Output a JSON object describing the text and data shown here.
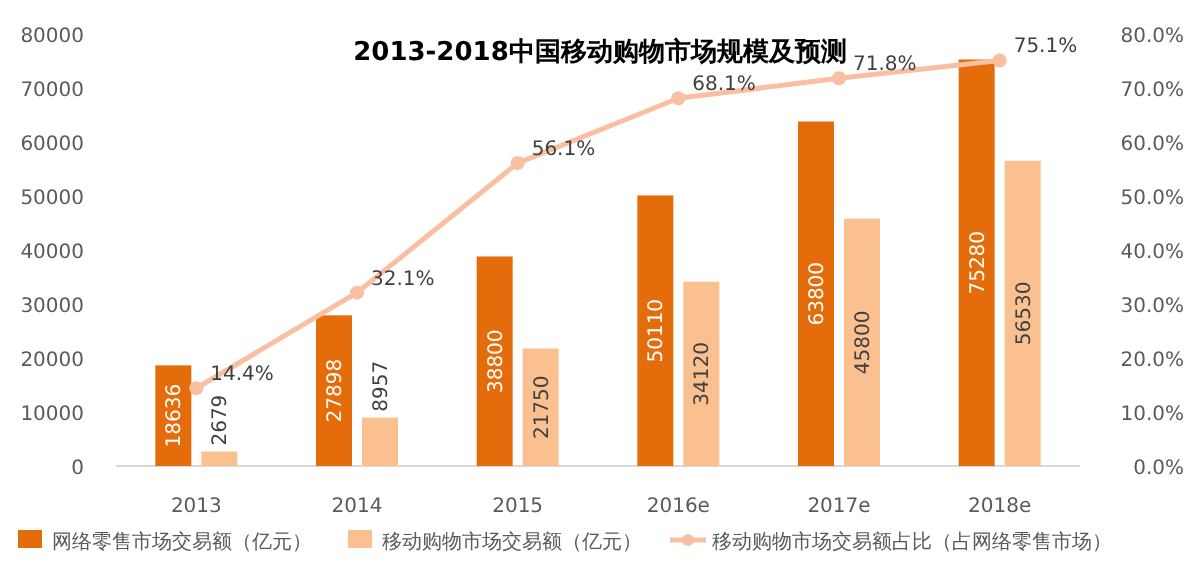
{
  "chart_data": {
    "type": "bar",
    "title": "2013-2018中国移动购物市场规模及预测",
    "categories": [
      "2013",
      "2014",
      "2015",
      "2016e",
      "2017e",
      "2018e"
    ],
    "series": [
      {
        "name": "网络零售市场交易额（亿元）",
        "color": "#e46c0a",
        "values": [
          18636,
          27898,
          38800,
          50110,
          63800,
          75280
        ]
      },
      {
        "name": "移动购物市场交易额（亿元）",
        "color": "#fac090",
        "values": [
          2679,
          8957,
          21750,
          34120,
          45800,
          56530
        ]
      },
      {
        "name": "移动购物市场交易额占比（占网络零售市场）",
        "type": "line",
        "axis": "y2",
        "marker": "circle",
        "color": "#f9bfa0",
        "values": [
          14.4,
          32.1,
          56.1,
          68.1,
          71.8,
          75.1
        ],
        "value_labels": [
          "14.4%",
          "32.1%",
          "56.1%",
          "68.1%",
          "71.8%",
          "75.1%"
        ]
      }
    ],
    "ylim": [
      0,
      80000
    ],
    "yticks": [
      0,
      10000,
      20000,
      30000,
      40000,
      50000,
      60000,
      70000,
      80000
    ],
    "y2lim": [
      0,
      80
    ],
    "y2ticks": [
      {
        "value": 0,
        "label": "0.0%"
      },
      {
        "value": 10,
        "label": "10.0%"
      },
      {
        "value": 20,
        "label": "20.0%"
      },
      {
        "value": 30,
        "label": "30.0%"
      },
      {
        "value": 40,
        "label": "40.0%"
      },
      {
        "value": 50,
        "label": "50.0%"
      },
      {
        "value": 60,
        "label": "60.0%"
      },
      {
        "value": 70,
        "label": "70.0%"
      },
      {
        "value": 80,
        "label": "80.0%"
      }
    ],
    "data_labels": true,
    "grid": false,
    "legend": "bottom"
  }
}
